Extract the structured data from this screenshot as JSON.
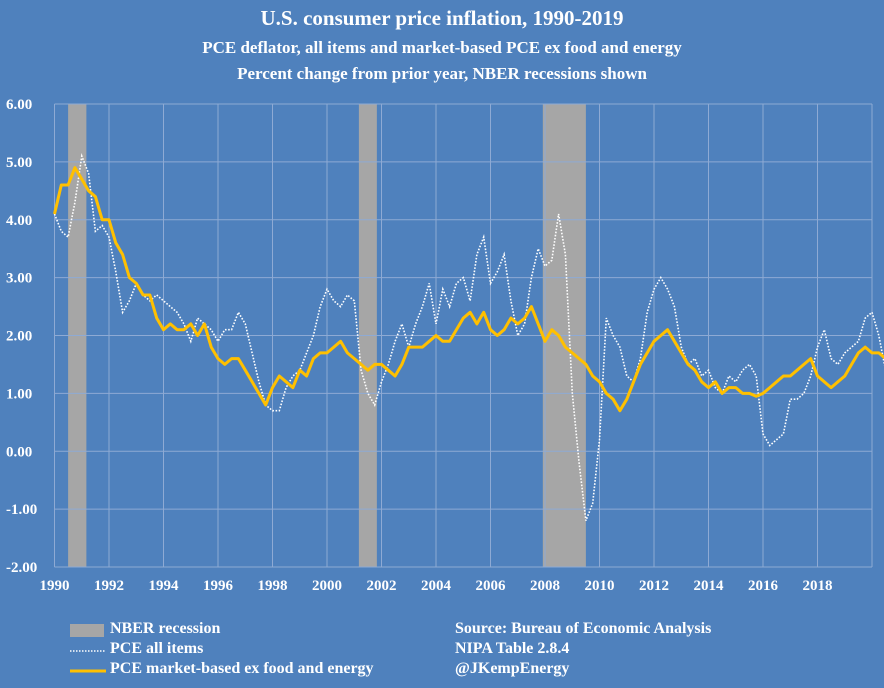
{
  "header": {
    "title": "U.S. consumer price inflation, 1990-2019",
    "subtitle1": "PCE deflator, all items and market-based PCE ex food and energy",
    "subtitle2": "Percent change from prior year, NBER recessions shown"
  },
  "colors": {
    "background": "#4f81bd",
    "gridline": "#8eaad4",
    "recession": "#a6a6a6",
    "core_line": "#ffc000",
    "all_items_line": "#ffffff"
  },
  "chart_data": {
    "type": "line",
    "title": "U.S. consumer price inflation, 1990-2019",
    "subtitle": [
      "PCE deflator, all items and market-based PCE ex food and energy",
      "Percent change from prior year, NBER recessions shown"
    ],
    "xlabel": "",
    "ylabel": "",
    "xlim": [
      1990,
      2020
    ],
    "ylim": [
      -2,
      6
    ],
    "x_ticks": [
      "1990",
      "1992",
      "1994",
      "1996",
      "1998",
      "2000",
      "2002",
      "2004",
      "2006",
      "2008",
      "2010",
      "2012",
      "2014",
      "2016",
      "2018"
    ],
    "y_ticks": [
      "6.00",
      "5.00",
      "4.00",
      "3.00",
      "2.00",
      "1.00",
      "0.00",
      "-1.00",
      "-2.00"
    ],
    "grid": true,
    "legend_position": "bottom-left",
    "recessions": [
      {
        "start": 1990.5,
        "end": 1991.17
      },
      {
        "start": 2001.17,
        "end": 2001.83
      },
      {
        "start": 2007.92,
        "end": 2009.5
      }
    ],
    "x_step_years": 0.25,
    "x_start": 1990.0,
    "series": [
      {
        "name": "PCE all items",
        "style": "dotted",
        "values": [
          4.1,
          3.8,
          3.7,
          4.3,
          5.1,
          4.8,
          3.8,
          3.9,
          3.7,
          3.1,
          2.4,
          2.6,
          2.9,
          2.7,
          2.6,
          2.7,
          2.6,
          2.5,
          2.4,
          2.2,
          1.9,
          2.3,
          2.2,
          2.1,
          1.9,
          2.1,
          2.1,
          2.4,
          2.2,
          1.7,
          1.2,
          0.8,
          0.7,
          0.7,
          1.1,
          1.3,
          1.4,
          1.7,
          2.0,
          2.5,
          2.8,
          2.6,
          2.5,
          2.7,
          2.6,
          1.4,
          1.0,
          0.8,
          1.2,
          1.5,
          1.9,
          2.2,
          1.8,
          2.2,
          2.5,
          2.9,
          2.2,
          2.8,
          2.5,
          2.9,
          3.0,
          2.6,
          3.4,
          3.7,
          2.9,
          3.1,
          3.4,
          2.6,
          2.0,
          2.2,
          3.0,
          3.5,
          3.2,
          3.3,
          4.1,
          3.4,
          1.0,
          -0.2,
          -1.2,
          -0.9,
          0.2,
          2.3,
          2.0,
          1.8,
          1.3,
          1.2,
          1.6,
          2.4,
          2.8,
          3.0,
          2.8,
          2.5,
          1.8,
          1.5,
          1.6,
          1.3,
          1.4,
          1.1,
          1.0,
          1.3,
          1.2,
          1.4,
          1.5,
          1.3,
          0.3,
          0.1,
          0.2,
          0.3,
          0.9,
          0.9,
          1.0,
          1.3,
          1.8,
          2.1,
          1.6,
          1.5,
          1.7,
          1.8,
          1.9,
          2.3,
          2.4,
          2.0,
          1.4,
          1.3,
          1.4
        ]
      },
      {
        "name": "PCE market-based ex food and energy",
        "style": "solid",
        "values": [
          4.1,
          4.6,
          4.6,
          4.9,
          4.7,
          4.5,
          4.4,
          4.0,
          4.0,
          3.6,
          3.4,
          3.0,
          2.9,
          2.7,
          2.7,
          2.3,
          2.1,
          2.2,
          2.1,
          2.1,
          2.2,
          2.0,
          2.2,
          1.8,
          1.6,
          1.5,
          1.6,
          1.6,
          1.4,
          1.2,
          1.0,
          0.8,
          1.1,
          1.3,
          1.2,
          1.1,
          1.4,
          1.3,
          1.6,
          1.7,
          1.7,
          1.8,
          1.9,
          1.7,
          1.6,
          1.5,
          1.4,
          1.5,
          1.5,
          1.4,
          1.3,
          1.5,
          1.8,
          1.8,
          1.8,
          1.9,
          2.0,
          1.9,
          1.9,
          2.1,
          2.3,
          2.4,
          2.2,
          2.4,
          2.1,
          2.0,
          2.1,
          2.3,
          2.2,
          2.3,
          2.5,
          2.2,
          1.9,
          2.1,
          2.0,
          1.8,
          1.7,
          1.6,
          1.5,
          1.3,
          1.2,
          1.0,
          0.9,
          0.7,
          0.9,
          1.2,
          1.5,
          1.7,
          1.9,
          2.0,
          2.1,
          1.9,
          1.7,
          1.5,
          1.4,
          1.2,
          1.1,
          1.2,
          1.0,
          1.1,
          1.1,
          1.0,
          1.0,
          0.95,
          1.0,
          1.1,
          1.2,
          1.3,
          1.3,
          1.4,
          1.5,
          1.6,
          1.3,
          1.2,
          1.1,
          1.2,
          1.3,
          1.5,
          1.7,
          1.8,
          1.7,
          1.7,
          1.6,
          1.5,
          1.55
        ]
      }
    ]
  },
  "legend": {
    "items": [
      {
        "label": "NBER recession",
        "symbol": "recession-swatch"
      },
      {
        "label": "PCE all items",
        "symbol": "dotted-line"
      },
      {
        "label": "PCE market-based ex food and energy",
        "symbol": "solid-line"
      }
    ]
  },
  "source": {
    "line1": "Source: Bureau of Economic Analysis",
    "line2": "NIPA Table 2.8.4",
    "line3": "@JKempEnergy"
  }
}
